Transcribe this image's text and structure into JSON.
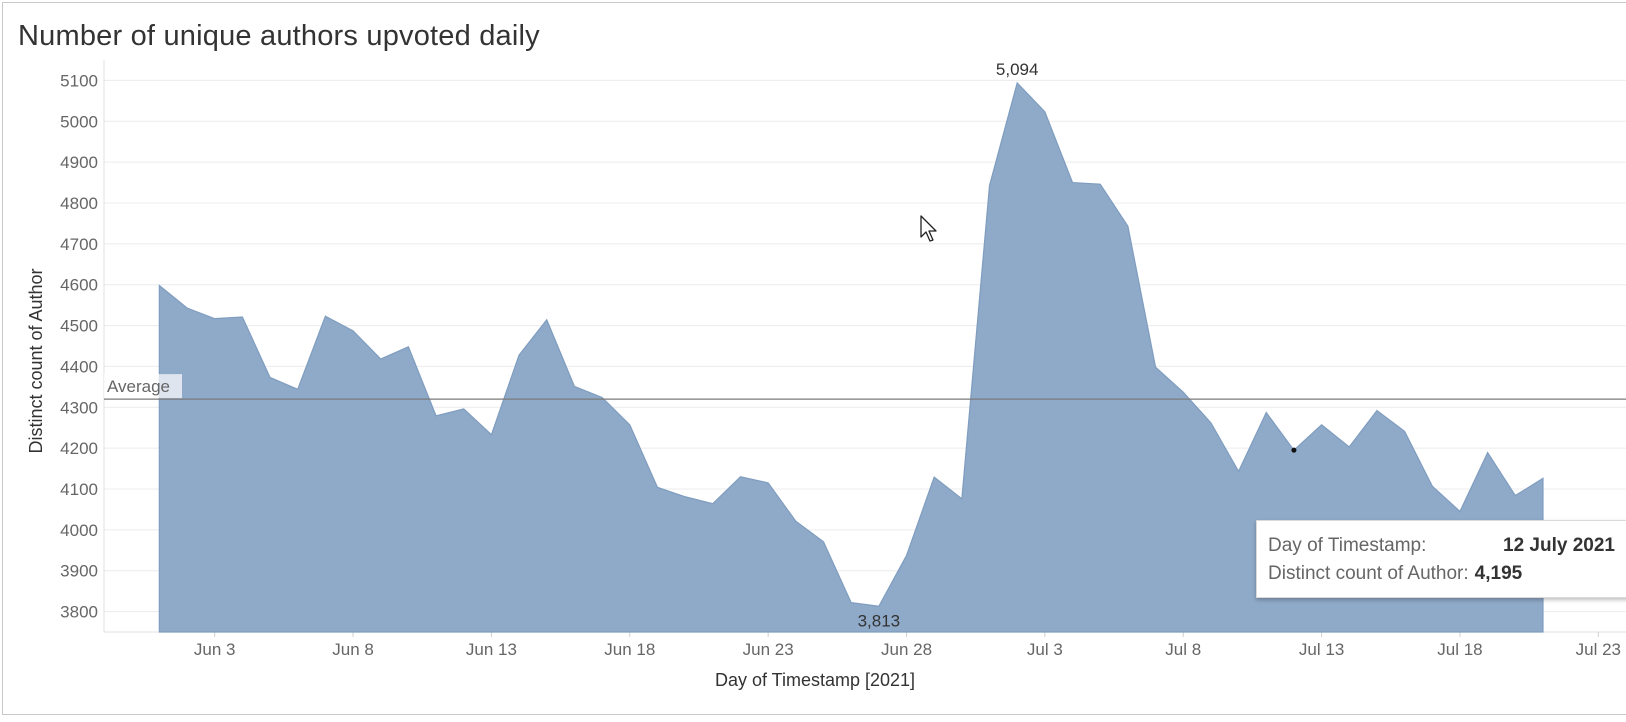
{
  "title": "Number of unique authors upvoted daily",
  "colors": {
    "area_fill": "#8fa9c8",
    "area_stroke": "#7f9dbf",
    "average_line": "#7a7a7a",
    "grid": "#ececec",
    "axis_text": "#666666",
    "title_text": "#333333"
  },
  "tooltip": {
    "date_label": "Day of Timestamp:",
    "date_value": "12 July 2021",
    "count_label": "Distinct count of Author:",
    "count_value": "4,195"
  },
  "chart_data": {
    "type": "area",
    "title": "Number of unique authors upvoted daily",
    "xlabel": "Day of Timestamp [2021]",
    "ylabel": "Distinct count of Author",
    "x": [
      "2021-06-01",
      "2021-06-02",
      "2021-06-03",
      "2021-06-04",
      "2021-06-05",
      "2021-06-06",
      "2021-06-07",
      "2021-06-08",
      "2021-06-09",
      "2021-06-10",
      "2021-06-11",
      "2021-06-12",
      "2021-06-13",
      "2021-06-14",
      "2021-06-15",
      "2021-06-16",
      "2021-06-17",
      "2021-06-18",
      "2021-06-19",
      "2021-06-20",
      "2021-06-21",
      "2021-06-22",
      "2021-06-23",
      "2021-06-24",
      "2021-06-25",
      "2021-06-26",
      "2021-06-27",
      "2021-06-28",
      "2021-06-29",
      "2021-06-30",
      "2021-07-01",
      "2021-07-02",
      "2021-07-03",
      "2021-07-04",
      "2021-07-05",
      "2021-07-06",
      "2021-07-07",
      "2021-07-08",
      "2021-07-09",
      "2021-07-10",
      "2021-07-11",
      "2021-07-12",
      "2021-07-13",
      "2021-07-14",
      "2021-07-15",
      "2021-07-16",
      "2021-07-17",
      "2021-07-18",
      "2021-07-19",
      "2021-07-20",
      "2021-07-21"
    ],
    "values": [
      4598,
      4543,
      4517,
      4521,
      4373,
      4344,
      4523,
      4487,
      4418,
      4448,
      4279,
      4296,
      4233,
      4428,
      4514,
      4351,
      4324,
      4257,
      4104,
      4081,
      4064,
      4130,
      4115,
      4021,
      3971,
      3822,
      3813,
      3937,
      4129,
      4076,
      4843,
      5094,
      5023,
      4850,
      4846,
      4743,
      4398,
      4337,
      4262,
      4143,
      4287,
      4195,
      4257,
      4203,
      4292,
      4241,
      4107,
      4045,
      4189,
      4084,
      4126
    ],
    "ylim": [
      3750,
      5150
    ],
    "yticks": [
      3800,
      3900,
      4000,
      4100,
      4200,
      4300,
      4400,
      4500,
      4600,
      4700,
      4800,
      4900,
      5000,
      5100
    ],
    "xlim": [
      "2021-05-30",
      "2021-07-24"
    ],
    "xticks": [
      {
        "date": "2021-06-03",
        "label": "Jun 3"
      },
      {
        "date": "2021-06-08",
        "label": "Jun 8"
      },
      {
        "date": "2021-06-13",
        "label": "Jun 13"
      },
      {
        "date": "2021-06-18",
        "label": "Jun 18"
      },
      {
        "date": "2021-06-23",
        "label": "Jun 23"
      },
      {
        "date": "2021-06-28",
        "label": "Jun 28"
      },
      {
        "date": "2021-07-03",
        "label": "Jul 3"
      },
      {
        "date": "2021-07-08",
        "label": "Jul 8"
      },
      {
        "date": "2021-07-13",
        "label": "Jul 13"
      },
      {
        "date": "2021-07-18",
        "label": "Jul 18"
      },
      {
        "date": "2021-07-23",
        "label": "Jul 23"
      }
    ],
    "reference_line": {
      "label": "Average",
      "value": 4320
    },
    "annotations": [
      {
        "date": "2021-07-02",
        "value": 5094,
        "text": "5,094",
        "position": "above"
      },
      {
        "date": "2021-06-27",
        "value": 3813,
        "text": "3,813",
        "position": "below"
      }
    ],
    "highlight": {
      "date": "2021-07-12",
      "value": 4195
    },
    "grid": true,
    "legend": "none"
  }
}
